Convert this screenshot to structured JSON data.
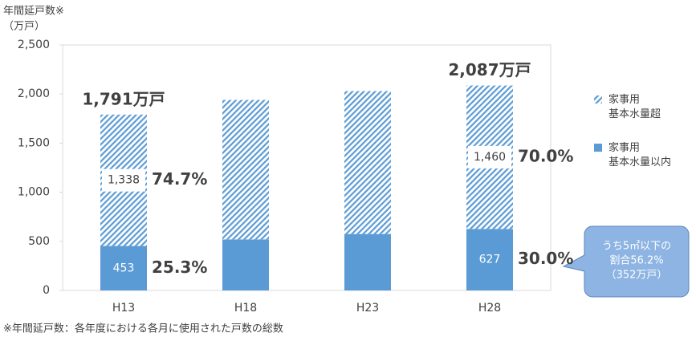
{
  "chart_data": {
    "type": "stacked_bar",
    "y_label": "年間延戸数※",
    "y_unit": "（万戸）",
    "categories": [
      "H13",
      "H18",
      "H23",
      "H28"
    ],
    "series": [
      {
        "name": "家事用\n基本水量以内",
        "color": "#5b9bd5",
        "fill_style": "solid",
        "values": [
          453,
          520,
          575,
          627
        ],
        "value_labels": [
          "453",
          null,
          null,
          "627"
        ],
        "percent_labels": [
          "25.3%",
          null,
          null,
          "30.0%"
        ]
      },
      {
        "name": "家事用\n基本水量超",
        "color": "#5b9bd5",
        "fill_style": "hatch",
        "values": [
          1338,
          1420,
          1455,
          1460
        ],
        "value_labels": [
          "1,338",
          null,
          null,
          "1,460"
        ],
        "percent_labels": [
          "74.7%",
          null,
          null,
          "70.0%"
        ]
      }
    ],
    "total_labels": [
      "1,791万戸",
      null,
      null,
      "2,087万戸"
    ],
    "ylim": [
      0,
      2500
    ],
    "yticks": [
      0,
      500,
      {
        "value": 1000,
        "label": "1,000"
      },
      {
        "value": 1500,
        "label": "1,500"
      },
      {
        "value": 2000,
        "label": "2,000"
      },
      {
        "value": 2500,
        "label": "2,500"
      }
    ],
    "callout": [
      "うち5㎡以下の",
      "割合56.2%",
      "（352万戸）"
    ],
    "footnote": "※年間延戸数：各年度における各月に使用された戸数の総数"
  }
}
